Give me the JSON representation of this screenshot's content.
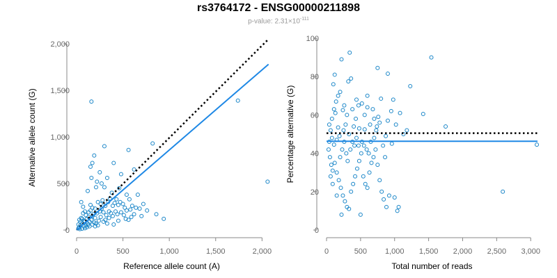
{
  "title": "rs3764172 - ENSG00000211898",
  "subtitle": {
    "prefix": "p-value: 2.31×10",
    "exponent": "-111"
  },
  "colors": {
    "points": "#1a86c8",
    "fit": "#1e88e5",
    "reference": "#000000",
    "axis": "#888888"
  },
  "chart_data": [
    {
      "type": "scatter",
      "xlabel": "Reference allele count (A)",
      "ylabel": "Alternative allele count (G)",
      "xlim": [
        0,
        2050
      ],
      "ylim": [
        0,
        2000
      ],
      "xticks": [
        0,
        500,
        1000,
        1500,
        2000
      ],
      "xtick_labels": [
        "0",
        "500",
        "1,000",
        "1,500",
        "2,000"
      ],
      "yticks": [
        0,
        500,
        1000,
        1500,
        2000
      ],
      "ytick_labels": [
        "0",
        "500",
        "1,000",
        "1,500",
        "2,000"
      ],
      "fit_line": {
        "x": [
          0,
          2070
        ],
        "y": [
          0,
          1780
        ]
      },
      "reference_line": {
        "x": [
          0,
          2070
        ],
        "y": [
          0,
          2050
        ]
      },
      "points": [
        [
          2060,
          520
        ],
        [
          1740,
          1390
        ],
        [
          160,
          1380
        ],
        [
          820,
          930
        ],
        [
          560,
          860
        ],
        [
          300,
          900
        ],
        [
          190,
          800
        ],
        [
          620,
          650
        ],
        [
          150,
          680
        ],
        [
          170,
          720
        ],
        [
          400,
          720
        ],
        [
          480,
          600
        ],
        [
          330,
          560
        ],
        [
          250,
          620
        ],
        [
          270,
          500
        ],
        [
          220,
          520
        ],
        [
          160,
          560
        ],
        [
          300,
          460
        ],
        [
          210,
          460
        ],
        [
          460,
          450
        ],
        [
          380,
          400
        ],
        [
          540,
          380
        ],
        [
          570,
          330
        ],
        [
          660,
          380
        ],
        [
          120,
          420
        ],
        [
          50,
          300
        ],
        [
          70,
          250
        ],
        [
          90,
          200
        ],
        [
          100,
          160
        ],
        [
          130,
          140
        ],
        [
          150,
          270
        ],
        [
          170,
          240
        ],
        [
          200,
          230
        ],
        [
          230,
          300
        ],
        [
          260,
          280
        ],
        [
          280,
          320
        ],
        [
          310,
          260
        ],
        [
          340,
          300
        ],
        [
          360,
          340
        ],
        [
          390,
          260
        ],
        [
          410,
          290
        ],
        [
          430,
          330
        ],
        [
          450,
          270
        ],
        [
          470,
          300
        ],
        [
          500,
          280
        ],
        [
          520,
          240
        ],
        [
          540,
          210
        ],
        [
          580,
          220
        ],
        [
          600,
          260
        ],
        [
          640,
          240
        ],
        [
          680,
          230
        ],
        [
          720,
          280
        ],
        [
          760,
          210
        ],
        [
          860,
          170
        ],
        [
          940,
          120
        ],
        [
          590,
          140
        ],
        [
          450,
          100
        ],
        [
          400,
          60
        ],
        [
          350,
          130
        ],
        [
          320,
          160
        ],
        [
          290,
          190
        ],
        [
          260,
          140
        ],
        [
          240,
          100
        ],
        [
          220,
          180
        ],
        [
          200,
          130
        ],
        [
          180,
          170
        ],
        [
          160,
          110
        ],
        [
          140,
          90
        ],
        [
          120,
          70
        ],
        [
          100,
          50
        ],
        [
          80,
          40
        ],
        [
          60,
          70
        ],
        [
          40,
          50
        ],
        [
          30,
          30
        ],
        [
          20,
          20
        ],
        [
          20,
          60
        ],
        [
          40,
          90
        ],
        [
          60,
          120
        ],
        [
          80,
          100
        ],
        [
          110,
          120
        ],
        [
          130,
          190
        ],
        [
          150,
          210
        ],
        [
          170,
          150
        ],
        [
          190,
          80
        ],
        [
          210,
          70
        ],
        [
          230,
          50
        ],
        [
          250,
          200
        ],
        [
          270,
          230
        ],
        [
          290,
          90
        ],
        [
          310,
          110
        ],
        [
          330,
          70
        ],
        [
          350,
          200
        ],
        [
          370,
          180
        ],
        [
          390,
          150
        ],
        [
          420,
          200
        ],
        [
          440,
          170
        ],
        [
          480,
          190
        ],
        [
          510,
          160
        ],
        [
          530,
          120
        ],
        [
          560,
          110
        ],
        [
          620,
          170
        ],
        [
          700,
          150
        ],
        [
          30,
          110
        ],
        [
          50,
          130
        ],
        [
          70,
          180
        ],
        [
          90,
          90
        ],
        [
          110,
          30
        ],
        [
          140,
          40
        ],
        [
          170,
          60
        ],
        [
          200,
          40
        ],
        [
          35,
          10
        ],
        [
          60,
          15
        ],
        [
          90,
          20
        ],
        [
          125,
          55
        ]
      ]
    },
    {
      "type": "scatter",
      "xlabel": "Total number of reads",
      "ylabel": "Percentage alternative (G)",
      "xlim": [
        0,
        3100
      ],
      "ylim": [
        0,
        100
      ],
      "xticks": [
        0,
        500,
        1000,
        1500,
        2000,
        2500,
        3000
      ],
      "xtick_labels": [
        "0",
        "500",
        "1,000",
        "1,500",
        "2,000",
        "2,500",
        "3,000"
      ],
      "yticks": [
        0,
        20,
        40,
        60,
        80,
        100
      ],
      "ytick_labels": [
        "0",
        "20",
        "40",
        "60",
        "80",
        "100"
      ],
      "fit_line": {
        "x": [
          0,
          3100
        ],
        "y": [
          46.3,
          46.3
        ]
      },
      "reference_line": {
        "x": [
          0,
          3100
        ],
        "y": [
          50.5,
          50.5
        ]
      },
      "points": [
        [
          340,
          92.5
        ],
        [
          220,
          89
        ],
        [
          1540,
          90
        ],
        [
          750,
          84.5
        ],
        [
          900,
          81.5
        ],
        [
          360,
          79
        ],
        [
          120,
          81
        ],
        [
          1230,
          75
        ],
        [
          600,
          70
        ],
        [
          800,
          68.5
        ],
        [
          470,
          65
        ],
        [
          200,
          72
        ],
        [
          320,
          77.5
        ],
        [
          100,
          76
        ],
        [
          130,
          61
        ],
        [
          240,
          62.5
        ],
        [
          430,
          58
        ],
        [
          560,
          60
        ],
        [
          680,
          63
        ],
        [
          760,
          59
        ],
        [
          950,
          62
        ],
        [
          1080,
          61
        ],
        [
          1420,
          60.5
        ],
        [
          1750,
          54
        ],
        [
          1020,
          55
        ],
        [
          900,
          57
        ],
        [
          870,
          49
        ],
        [
          1130,
          50
        ],
        [
          960,
          45
        ],
        [
          640,
          55
        ],
        [
          560,
          52.5
        ],
        [
          480,
          53
        ],
        [
          400,
          54
        ],
        [
          330,
          50
        ],
        [
          280,
          55
        ],
        [
          250,
          52
        ],
        [
          190,
          49
        ],
        [
          170,
          53.5
        ],
        [
          150,
          47
        ],
        [
          110,
          44.5
        ],
        [
          80,
          48
        ],
        [
          60,
          52
        ],
        [
          40,
          46
        ],
        [
          30,
          42
        ],
        [
          50,
          38
        ],
        [
          70,
          34
        ],
        [
          90,
          31
        ],
        [
          120,
          35
        ],
        [
          150,
          30
        ],
        [
          180,
          26
        ],
        [
          210,
          22
        ],
        [
          240,
          18
        ],
        [
          270,
          15
        ],
        [
          300,
          12
        ],
        [
          330,
          11
        ],
        [
          360,
          20
        ],
        [
          390,
          24
        ],
        [
          420,
          28
        ],
        [
          450,
          32
        ],
        [
          480,
          36
        ],
        [
          510,
          40
        ],
        [
          540,
          28
        ],
        [
          570,
          24
        ],
        [
          600,
          22
        ],
        [
          630,
          30
        ],
        [
          660,
          35
        ],
        [
          690,
          38
        ],
        [
          720,
          42
        ],
        [
          750,
          34
        ],
        [
          780,
          26
        ],
        [
          810,
          20
        ],
        [
          840,
          16
        ],
        [
          880,
          12
        ],
        [
          920,
          18
        ],
        [
          1000,
          17
        ],
        [
          1040,
          10
        ],
        [
          1060,
          12
        ],
        [
          2590,
          20
        ],
        [
          3090,
          44.5
        ],
        [
          500,
          8
        ],
        [
          220,
          8
        ],
        [
          150,
          18
        ],
        [
          90,
          24
        ],
        [
          60,
          28
        ],
        [
          200,
          38
        ],
        [
          230,
          42
        ],
        [
          260,
          46
        ],
        [
          290,
          40
        ],
        [
          310,
          36
        ],
        [
          350,
          42
        ],
        [
          380,
          46
        ],
        [
          410,
          44
        ],
        [
          440,
          48
        ],
        [
          470,
          44
        ],
        [
          520,
          46
        ],
        [
          550,
          44
        ],
        [
          590,
          42
        ],
        [
          620,
          40
        ],
        [
          650,
          46
        ],
        [
          700,
          48
        ],
        [
          730,
          52
        ],
        [
          780,
          56
        ],
        [
          830,
          44
        ],
        [
          860,
          38
        ],
        [
          40,
          55
        ],
        [
          80,
          58
        ],
        [
          110,
          63
        ],
        [
          140,
          67
        ],
        [
          170,
          70
        ],
        [
          260,
          65
        ],
        [
          300,
          60
        ],
        [
          380,
          63
        ],
        [
          440,
          68
        ],
        [
          520,
          66
        ],
        [
          600,
          64
        ],
        [
          700,
          58
        ],
        [
          740,
          54
        ],
        [
          980,
          68
        ],
        [
          1180,
          52
        ]
      ]
    }
  ]
}
